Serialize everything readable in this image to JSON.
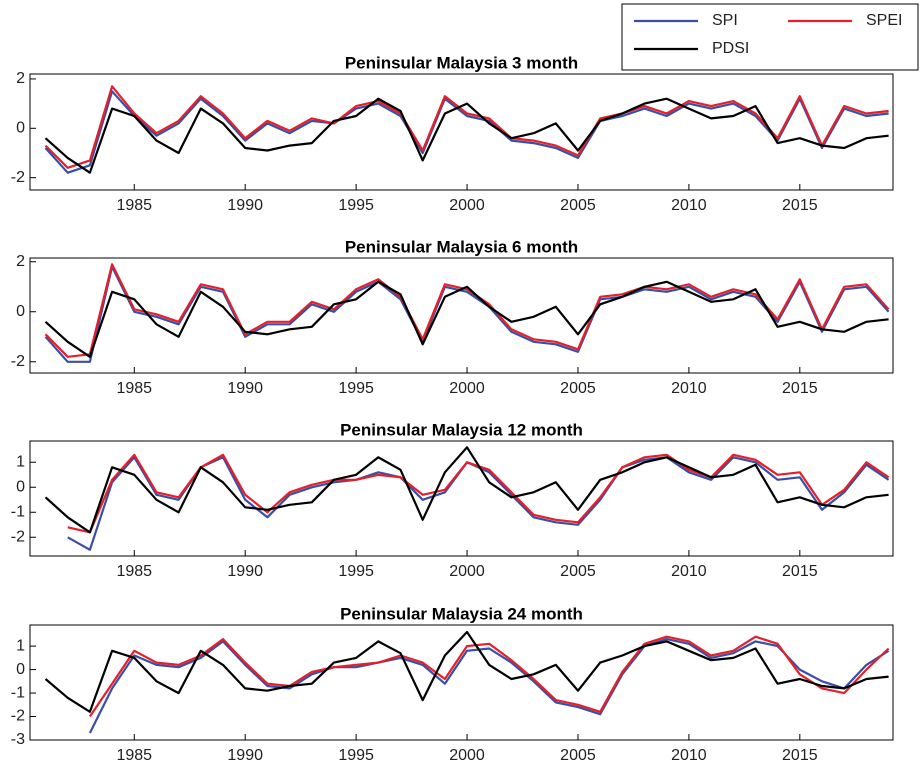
{
  "chart_data": [
    {
      "type": "line",
      "title": "Peninsular Malaysia 3 month",
      "legend": "northeast",
      "x": [
        1981,
        1982,
        1983,
        1984,
        1985,
        1986,
        1987,
        1988,
        1989,
        1990,
        1991,
        1992,
        1993,
        1994,
        1995,
        1996,
        1997,
        1998,
        1999,
        2000,
        2001,
        2002,
        2003,
        2004,
        2005,
        2006,
        2007,
        2008,
        2009,
        2010,
        2011,
        2012,
        2013,
        2014,
        2015,
        2016,
        2017,
        2018,
        2019
      ],
      "xlim": [
        1980.3,
        2019.2
      ],
      "xticks": [
        1985,
        1990,
        1995,
        2000,
        2005,
        2010,
        2015
      ],
      "ylim": [
        -2.5,
        2.2
      ],
      "yticks": [
        -2,
        0,
        2
      ],
      "series": [
        {
          "name": "SPI",
          "color": "#3b4ea6",
          "values": [
            -0.8,
            -1.8,
            -1.5,
            1.5,
            0.5,
            -0.3,
            0.2,
            1.2,
            0.5,
            -0.5,
            0.2,
            -0.2,
            0.3,
            0.2,
            0.8,
            1.0,
            0.5,
            -1.0,
            1.2,
            0.5,
            0.3,
            -0.5,
            -0.6,
            -0.8,
            -1.2,
            0.3,
            0.5,
            0.8,
            0.5,
            1.0,
            0.8,
            1.0,
            0.5,
            -0.5,
            1.2,
            -0.8,
            0.8,
            0.5,
            0.6
          ]
        },
        {
          "name": "SPEI",
          "color": "#e3202b",
          "values": [
            -0.7,
            -1.6,
            -1.3,
            1.7,
            0.6,
            -0.2,
            0.3,
            1.3,
            0.6,
            -0.4,
            0.3,
            -0.1,
            0.4,
            0.2,
            0.9,
            1.1,
            0.6,
            -0.9,
            1.3,
            0.6,
            0.4,
            -0.4,
            -0.5,
            -0.7,
            -1.1,
            0.4,
            0.6,
            0.9,
            0.6,
            1.1,
            0.9,
            1.1,
            0.6,
            -0.4,
            1.3,
            -0.7,
            0.9,
            0.6,
            0.7
          ]
        },
        {
          "name": "PDSI",
          "color": "#000000",
          "values": [
            -0.4,
            -1.2,
            -1.8,
            0.8,
            0.5,
            -0.5,
            -1.0,
            0.8,
            0.2,
            -0.8,
            -0.9,
            -0.7,
            -0.6,
            0.3,
            0.5,
            1.2,
            0.7,
            -1.3,
            0.6,
            1.0,
            0.2,
            -0.4,
            -0.2,
            0.2,
            -0.9,
            0.3,
            0.6,
            1.0,
            1.2,
            0.8,
            0.4,
            0.5,
            0.9,
            -0.6,
            -0.4,
            -0.7,
            -0.8,
            -0.4,
            -0.3
          ]
        }
      ]
    },
    {
      "type": "line",
      "title": "Peninsular Malaysia 6 month",
      "x": [
        1981,
        1982,
        1983,
        1984,
        1985,
        1986,
        1987,
        1988,
        1989,
        1990,
        1991,
        1992,
        1993,
        1994,
        1995,
        1996,
        1997,
        1998,
        1999,
        2000,
        2001,
        2002,
        2003,
        2004,
        2005,
        2006,
        2007,
        2008,
        2009,
        2010,
        2011,
        2012,
        2013,
        2014,
        2015,
        2016,
        2017,
        2018,
        2019
      ],
      "xlim": [
        1980.3,
        2019.2
      ],
      "xticks": [
        1985,
        1990,
        1995,
        2000,
        2005,
        2010,
        2015
      ],
      "ylim": [
        -2.45,
        2.15
      ],
      "yticks": [
        -2,
        0,
        2
      ],
      "series": [
        {
          "color": "#3b4ea6",
          "values": [
            -1.0,
            -2.0,
            -2.0,
            1.8,
            0.0,
            -0.2,
            -0.5,
            1.0,
            0.8,
            -1.0,
            -0.5,
            -0.5,
            0.3,
            0.0,
            0.8,
            1.2,
            0.5,
            -1.2,
            1.0,
            0.8,
            0.2,
            -0.8,
            -1.2,
            -1.3,
            -1.6,
            0.5,
            0.6,
            0.9,
            0.8,
            1.0,
            0.5,
            0.8,
            0.6,
            -0.4,
            1.2,
            -0.8,
            0.9,
            1.0,
            0.0
          ]
        },
        {
          "color": "#e3202b",
          "values": [
            -0.9,
            -1.8,
            -1.7,
            1.9,
            0.1,
            -0.1,
            -0.4,
            1.1,
            0.9,
            -0.9,
            -0.4,
            -0.4,
            0.4,
            0.1,
            0.9,
            1.3,
            0.6,
            -1.1,
            1.1,
            0.9,
            0.3,
            -0.7,
            -1.1,
            -1.2,
            -1.5,
            0.6,
            0.7,
            1.0,
            0.9,
            1.1,
            0.6,
            0.9,
            0.7,
            -0.3,
            1.3,
            -0.7,
            1.0,
            1.1,
            0.1
          ]
        },
        {
          "color": "#000000",
          "values": [
            -0.4,
            -1.2,
            -1.8,
            0.8,
            0.5,
            -0.5,
            -1.0,
            0.8,
            0.2,
            -0.8,
            -0.9,
            -0.7,
            -0.6,
            0.3,
            0.5,
            1.2,
            0.7,
            -1.3,
            0.6,
            1.0,
            0.2,
            -0.4,
            -0.2,
            0.2,
            -0.9,
            0.3,
            0.6,
            1.0,
            1.2,
            0.8,
            0.4,
            0.5,
            0.9,
            -0.6,
            -0.4,
            -0.7,
            -0.8,
            -0.4,
            -0.3
          ]
        }
      ]
    },
    {
      "type": "line",
      "title": "Peninsular Malaysia 12 month",
      "x": [
        1981,
        1982,
        1983,
        1984,
        1985,
        1986,
        1987,
        1988,
        1989,
        1990,
        1991,
        1992,
        1993,
        1994,
        1995,
        1996,
        1997,
        1998,
        1999,
        2000,
        2001,
        2002,
        2003,
        2004,
        2005,
        2006,
        2007,
        2008,
        2009,
        2010,
        2011,
        2012,
        2013,
        2014,
        2015,
        2016,
        2017,
        2018,
        2019
      ],
      "xlim": [
        1980.3,
        2019.2
      ],
      "xticks": [
        1985,
        1990,
        1995,
        2000,
        2005,
        2010,
        2015
      ],
      "ylim": [
        -2.75,
        1.85
      ],
      "yticks": [
        -2,
        -1,
        0,
        1
      ],
      "series": [
        {
          "color": "#3b4ea6",
          "values": [
            null,
            -2.0,
            -2.5,
            0.2,
            1.2,
            -0.3,
            -0.5,
            0.8,
            1.2,
            -0.5,
            -1.2,
            -0.3,
            0.0,
            0.2,
            0.3,
            0.6,
            0.4,
            -0.5,
            -0.2,
            1.0,
            0.6,
            -0.3,
            -1.2,
            -1.4,
            -1.5,
            -0.5,
            0.8,
            1.1,
            1.2,
            0.6,
            0.3,
            1.2,
            1.0,
            0.3,
            0.4,
            -0.9,
            -0.2,
            0.9,
            0.3
          ]
        },
        {
          "color": "#e3202b",
          "values": [
            null,
            -1.6,
            -1.8,
            0.3,
            1.3,
            -0.2,
            -0.4,
            0.8,
            1.3,
            -0.3,
            -1.0,
            -0.2,
            0.1,
            0.3,
            0.3,
            0.5,
            0.4,
            -0.3,
            -0.1,
            1.0,
            0.7,
            -0.2,
            -1.1,
            -1.3,
            -1.4,
            -0.4,
            0.8,
            1.2,
            1.3,
            0.7,
            0.4,
            1.3,
            1.1,
            0.5,
            0.6,
            -0.7,
            -0.1,
            1.0,
            0.4
          ]
        },
        {
          "color": "#000000",
          "values": [
            -0.4,
            -1.2,
            -1.8,
            0.8,
            0.5,
            -0.5,
            -1.0,
            0.8,
            0.2,
            -0.8,
            -0.9,
            -0.7,
            -0.6,
            0.3,
            0.5,
            1.2,
            0.7,
            -1.3,
            0.6,
            1.6,
            0.2,
            -0.4,
            -0.2,
            0.2,
            -0.9,
            0.3,
            0.6,
            1.0,
            1.2,
            0.8,
            0.4,
            0.5,
            0.9,
            -0.6,
            -0.4,
            -0.7,
            -0.8,
            -0.4,
            -0.3
          ]
        }
      ]
    },
    {
      "type": "line",
      "title": "Peninsular Malaysia 24 month",
      "x": [
        1981,
        1982,
        1983,
        1984,
        1985,
        1986,
        1987,
        1988,
        1989,
        1990,
        1991,
        1992,
        1993,
        1994,
        1995,
        1996,
        1997,
        1998,
        1999,
        2000,
        2001,
        2002,
        2003,
        2004,
        2005,
        2006,
        2007,
        2008,
        2009,
        2010,
        2011,
        2012,
        2013,
        2014,
        2015,
        2016,
        2017,
        2018,
        2019
      ],
      "xlim": [
        1980.3,
        2019.2
      ],
      "xticks": [
        1985,
        1990,
        1995,
        2000,
        2005,
        2010,
        2015
      ],
      "ylim": [
        -3,
        1.9
      ],
      "yticks": [
        -3,
        -2,
        -1,
        0,
        1
      ],
      "series": [
        {
          "color": "#3b4ea6",
          "values": [
            null,
            null,
            -2.7,
            -0.8,
            0.6,
            0.2,
            0.1,
            0.5,
            1.2,
            0.2,
            -0.7,
            -0.8,
            -0.2,
            0.1,
            0.1,
            0.3,
            0.5,
            0.2,
            -0.6,
            0.8,
            0.9,
            0.3,
            -0.5,
            -1.4,
            -1.6,
            -1.9,
            -0.2,
            1.0,
            1.3,
            1.1,
            0.5,
            0.7,
            1.2,
            1.0,
            0.0,
            -0.5,
            -0.8,
            0.2,
            0.8
          ]
        },
        {
          "color": "#e3202b",
          "values": [
            null,
            null,
            -2.0,
            -0.6,
            0.8,
            0.3,
            0.2,
            0.6,
            1.3,
            0.3,
            -0.6,
            -0.7,
            -0.1,
            0.1,
            0.2,
            0.3,
            0.6,
            0.3,
            -0.4,
            1.0,
            1.1,
            0.4,
            -0.4,
            -1.3,
            -1.5,
            -1.8,
            -0.1,
            1.1,
            1.4,
            1.2,
            0.6,
            0.8,
            1.4,
            1.1,
            -0.2,
            -0.8,
            -1.0,
            0.0,
            0.9
          ]
        },
        {
          "color": "#000000",
          "values": [
            -0.4,
            -1.2,
            -1.8,
            0.8,
            0.5,
            -0.5,
            -1.0,
            0.8,
            0.2,
            -0.8,
            -0.9,
            -0.7,
            -0.6,
            0.3,
            0.5,
            1.2,
            0.7,
            -1.3,
            0.6,
            1.6,
            0.2,
            -0.4,
            -0.2,
            0.2,
            -0.9,
            0.3,
            0.6,
            1.0,
            1.2,
            0.8,
            0.4,
            0.5,
            0.9,
            -0.6,
            -0.4,
            -0.7,
            -0.8,
            -0.4,
            -0.3
          ]
        }
      ]
    }
  ]
}
